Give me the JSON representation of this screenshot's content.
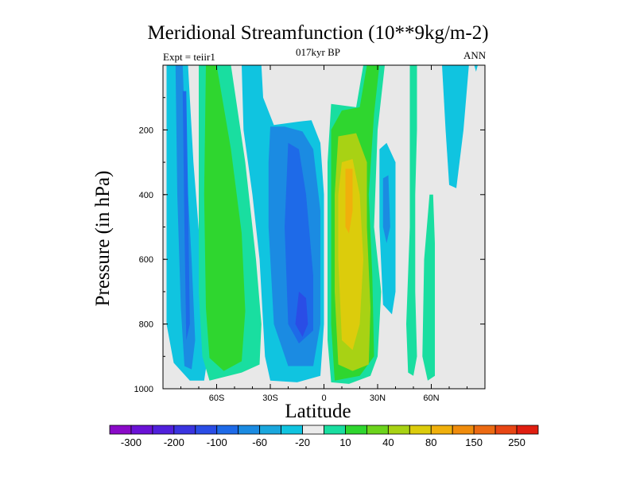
{
  "chart_data": {
    "type": "heatmap",
    "title": "Meridional Streamfunction (10**9kg/m-2)",
    "subtitle": "017kyr BP",
    "left_label": "Expt = teiir1",
    "right_label": "ANN",
    "xlabel": "Latitude",
    "ylabel": "Pressure (in hPa)",
    "xlim": [
      -90,
      90
    ],
    "ylim": [
      1000,
      0
    ],
    "x_ticks": [
      {
        "value": -60,
        "label": "60S"
      },
      {
        "value": -30,
        "label": "30S"
      },
      {
        "value": 0,
        "label": "0"
      },
      {
        "value": 30,
        "label": "30N"
      },
      {
        "value": 60,
        "label": "60N"
      }
    ],
    "y_ticks": [
      {
        "value": 200,
        "label": "200"
      },
      {
        "value": 400,
        "label": "400"
      },
      {
        "value": 600,
        "label": "600"
      },
      {
        "value": 800,
        "label": "800"
      },
      {
        "value": 1000,
        "label": "1000"
      }
    ],
    "background_color": "#e8e8e8",
    "colorbar": {
      "colors": [
        "#8a0ac8",
        "#6a12d6",
        "#5020dc",
        "#3a34e0",
        "#2a4de6",
        "#1e6ae8",
        "#1b8be2",
        "#1aa7dd",
        "#10c4e0",
        "#ebebeb",
        "#19dea0",
        "#2fd62f",
        "#6cd41c",
        "#a8d214",
        "#dccc0c",
        "#f0b00c",
        "#f08c0c",
        "#ec6a12",
        "#e84614",
        "#e01e10"
      ],
      "labels": [
        "-300",
        "-200",
        "-100",
        "-60",
        "-20",
        "10",
        "40",
        "80",
        "150",
        "250"
      ]
    },
    "regions": [
      {
        "level": -20,
        "color": "#10c4e0",
        "points": [
          [
            -88,
            0
          ],
          [
            -76,
            0
          ],
          [
            -73,
            300
          ],
          [
            -68,
            650
          ],
          [
            -65,
            900
          ],
          [
            -67,
            975
          ],
          [
            -75,
            975
          ],
          [
            -84,
            920
          ],
          [
            -88,
            800
          ]
        ]
      },
      {
        "level": -60,
        "color": "#1b8be2",
        "points": [
          [
            -83,
            0
          ],
          [
            -79,
            0
          ],
          [
            -77,
            300
          ],
          [
            -74,
            600
          ],
          [
            -72,
            850
          ],
          [
            -74,
            940
          ],
          [
            -78,
            930
          ],
          [
            -80,
            750
          ],
          [
            -82,
            400
          ]
        ]
      },
      {
        "level": -100,
        "color": "#1e6ae8",
        "points": [
          [
            -79,
            80
          ],
          [
            -77,
            80
          ],
          [
            -76,
            400
          ],
          [
            -75,
            800
          ],
          [
            -77,
            850
          ],
          [
            -78,
            500
          ]
        ]
      },
      {
        "level": 10,
        "color": "#19dea0",
        "points": [
          [
            -70,
            0
          ],
          [
            -52,
            0
          ],
          [
            -44,
            300
          ],
          [
            -38,
            600
          ],
          [
            -35,
            800
          ],
          [
            -36,
            925
          ],
          [
            -46,
            950
          ],
          [
            -64,
            975
          ],
          [
            -68,
            900
          ],
          [
            -70,
            700
          ]
        ]
      },
      {
        "level": 40,
        "color": "#2fd62f",
        "points": [
          [
            -66,
            0
          ],
          [
            -60,
            0
          ],
          [
            -52,
            260
          ],
          [
            -46,
            520
          ],
          [
            -44,
            760
          ],
          [
            -46,
            915
          ],
          [
            -56,
            945
          ],
          [
            -64,
            905
          ],
          [
            -66,
            750
          ],
          [
            -67,
            400
          ]
        ]
      },
      {
        "level": -20,
        "color": "#10c4e0",
        "points": [
          [
            -46,
            0
          ],
          [
            -35,
            0
          ],
          [
            -34,
            100
          ],
          [
            -28,
            185
          ],
          [
            -15,
            175
          ],
          [
            -7,
            170
          ],
          [
            -2,
            240
          ],
          [
            0,
            400
          ],
          [
            0,
            800
          ],
          [
            -2,
            960
          ],
          [
            -15,
            980
          ],
          [
            -30,
            975
          ],
          [
            -33,
            900
          ],
          [
            -36,
            600
          ],
          [
            -40,
            400
          ],
          [
            -45,
            200
          ]
        ]
      },
      {
        "level": -60,
        "color": "#1b8be2",
        "points": [
          [
            -30,
            190
          ],
          [
            -22,
            190
          ],
          [
            -12,
            205
          ],
          [
            -6,
            260
          ],
          [
            -2,
            450
          ],
          [
            -2,
            800
          ],
          [
            -6,
            930
          ],
          [
            -20,
            930
          ],
          [
            -28,
            800
          ],
          [
            -31,
            500
          ],
          [
            -31,
            300
          ]
        ]
      },
      {
        "level": -100,
        "color": "#1e6ae8",
        "points": [
          [
            -20,
            240
          ],
          [
            -14,
            260
          ],
          [
            -10,
            400
          ],
          [
            -6,
            650
          ],
          [
            -6,
            820
          ],
          [
            -14,
            860
          ],
          [
            -20,
            800
          ],
          [
            -22,
            500
          ]
        ]
      },
      {
        "level": -200,
        "color": "#2a4de6",
        "points": [
          [
            -14,
            700
          ],
          [
            -10,
            720
          ],
          [
            -9,
            800
          ],
          [
            -12,
            840
          ],
          [
            -16,
            800
          ]
        ]
      },
      {
        "level": 10,
        "color": "#19dea0",
        "points": [
          [
            4,
            120
          ],
          [
            18,
            130
          ],
          [
            22,
            0
          ],
          [
            34,
            0
          ],
          [
            30,
            200
          ],
          [
            28,
            500
          ],
          [
            32,
            700
          ],
          [
            30,
            900
          ],
          [
            26,
            960
          ],
          [
            14,
            985
          ],
          [
            4,
            980
          ],
          [
            2,
            850
          ],
          [
            2,
            600
          ],
          [
            2,
            300
          ]
        ]
      },
      {
        "level": 40,
        "color": "#2fd62f",
        "points": [
          [
            24,
            0
          ],
          [
            31,
            0
          ],
          [
            28,
            150
          ],
          [
            25,
            400
          ],
          [
            27,
            650
          ],
          [
            28,
            900
          ],
          [
            20,
            960
          ],
          [
            6,
            975
          ],
          [
            4,
            800
          ],
          [
            4,
            500
          ],
          [
            4,
            200
          ],
          [
            10,
            140
          ],
          [
            20,
            130
          ]
        ]
      },
      {
        "level": 80,
        "color": "#a8d214",
        "points": [
          [
            8,
            220
          ],
          [
            18,
            210
          ],
          [
            24,
            300
          ],
          [
            24,
            500
          ],
          [
            26,
            750
          ],
          [
            25,
            925
          ],
          [
            16,
            945
          ],
          [
            8,
            925
          ],
          [
            6,
            700
          ],
          [
            6,
            400
          ]
        ]
      },
      {
        "level": 150,
        "color": "#dccc0c",
        "points": [
          [
            10,
            300
          ],
          [
            16,
            290
          ],
          [
            20,
            400
          ],
          [
            22,
            600
          ],
          [
            20,
            800
          ],
          [
            16,
            880
          ],
          [
            10,
            850
          ],
          [
            8,
            600
          ],
          [
            8,
            400
          ]
        ]
      },
      {
        "level": 250,
        "color": "#f0b00c",
        "points": [
          [
            12,
            320
          ],
          [
            16,
            320
          ],
          [
            16,
            450
          ],
          [
            14,
            520
          ],
          [
            12,
            500
          ],
          [
            12,
            400
          ]
        ]
      },
      {
        "level": -20,
        "color": "#10c4e0",
        "points": [
          [
            31,
            260
          ],
          [
            35,
            240
          ],
          [
            40,
            300
          ],
          [
            40,
            700
          ],
          [
            38,
            770
          ],
          [
            33,
            740
          ],
          [
            31,
            500
          ]
        ]
      },
      {
        "level": -60,
        "color": "#1b8be2",
        "points": [
          [
            33,
            350
          ],
          [
            36,
            340
          ],
          [
            37,
            500
          ],
          [
            35,
            550
          ],
          [
            33,
            500
          ]
        ]
      },
      {
        "level": 10,
        "color": "#19dea0",
        "points": [
          [
            48,
            0
          ],
          [
            52,
            0
          ],
          [
            52,
            200
          ],
          [
            51,
            400
          ],
          [
            51,
            700
          ],
          [
            52,
            900
          ],
          [
            50,
            960
          ],
          [
            47,
            950
          ],
          [
            46,
            800
          ],
          [
            48,
            500
          ],
          [
            48,
            250
          ]
        ]
      },
      {
        "level": 10,
        "color": "#19dea0",
        "points": [
          [
            59,
            400
          ],
          [
            61,
            400
          ],
          [
            62,
            550
          ],
          [
            62,
            900
          ],
          [
            62,
            960
          ],
          [
            58,
            975
          ],
          [
            55,
            900
          ],
          [
            56,
            600
          ]
        ]
      },
      {
        "level": -20,
        "color": "#10c4e0",
        "points": [
          [
            66,
            0
          ],
          [
            81,
            0
          ],
          [
            78,
            200
          ],
          [
            74,
            380
          ],
          [
            70,
            370
          ],
          [
            68,
            200
          ]
        ]
      },
      {
        "level": -20,
        "color": "#10c4e0",
        "points": [
          [
            84,
            0
          ],
          [
            86,
            0
          ],
          [
            85,
            20
          ]
        ]
      }
    ]
  }
}
